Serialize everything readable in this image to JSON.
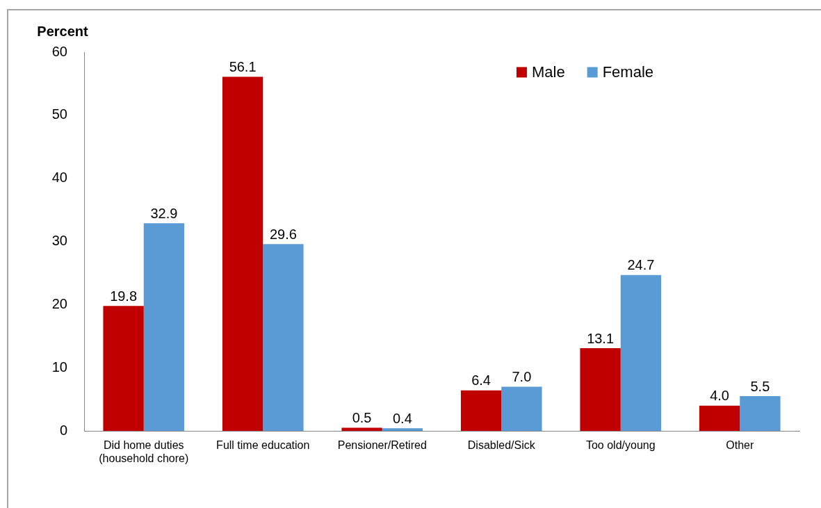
{
  "chart_data": {
    "type": "bar",
    "ylabel": "Percent",
    "categories": [
      "Did home duties (household chore)",
      "Full time education",
      "Pensioner/Retired",
      "Disabled/Sick",
      "Too old/young",
      "Other"
    ],
    "series": [
      {
        "name": "Male",
        "color": "#c00000",
        "values": [
          19.8,
          56.1,
          0.5,
          6.4,
          13.1,
          4.0
        ],
        "value_labels": [
          "19.8",
          "56.1",
          "0.5",
          "6.4",
          "13.1",
          "4.0"
        ]
      },
      {
        "name": "Female",
        "color": "#5b9bd5",
        "values": [
          32.9,
          29.6,
          0.4,
          7.0,
          24.7,
          5.5
        ],
        "value_labels": [
          "32.9",
          "29.6",
          "0.4",
          "7.0",
          "24.7",
          "5.5"
        ]
      }
    ],
    "ylim": [
      0,
      60
    ],
    "yticks": [
      0,
      10,
      20,
      30,
      40,
      50,
      60
    ],
    "legend": "top right"
  }
}
